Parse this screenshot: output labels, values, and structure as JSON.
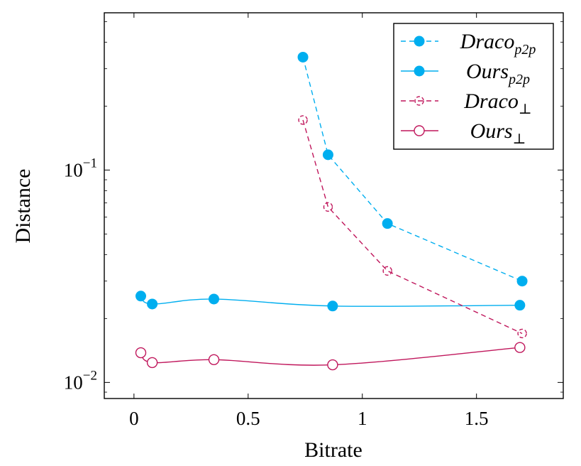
{
  "chart_data": {
    "type": "line",
    "xlabel": "Bitrate",
    "ylabel": "Distance",
    "xlim": [
      -0.13,
      1.88
    ],
    "ylim": [
      0.0084,
      0.55
    ],
    "yscale": "log",
    "xticks": [
      0,
      0.5,
      1,
      1.5
    ],
    "xtick_labels": [
      "0",
      "0.5",
      "1",
      "1.5"
    ],
    "yticks": [
      0.01,
      0.1
    ],
    "ytick_labels": [
      {
        "base": "10",
        "exp": "−2"
      },
      {
        "base": "10",
        "exp": "−1"
      }
    ],
    "grid": false,
    "legend_position": "top-right",
    "series": [
      {
        "name": "Draco",
        "sub": "p2p",
        "color": "#00AEEF",
        "dash": "dashed",
        "marker": "filled-circle",
        "curve": "linear",
        "x": [
          0.74,
          0.85,
          1.11,
          1.7
        ],
        "y": [
          0.34,
          0.118,
          0.056,
          0.03
        ]
      },
      {
        "name": "Ours",
        "sub": "p2p",
        "color": "#00AEEF",
        "dash": "solid",
        "marker": "filled-circle",
        "curve": "smooth",
        "x": [
          0.03,
          0.08,
          0.35,
          0.87,
          1.69
        ],
        "y": [
          0.0255,
          0.0234,
          0.0247,
          0.0229,
          0.0231
        ]
      },
      {
        "name": "Draco",
        "sub": "⊥",
        "color": "#C0175C",
        "dash": "dashed",
        "marker": "half-circle",
        "curve": "linear",
        "x": [
          0.74,
          0.85,
          1.11,
          1.7
        ],
        "y": [
          0.172,
          0.067,
          0.0335,
          0.017
        ]
      },
      {
        "name": "Ours",
        "sub": "⊥",
        "color": "#C0175C",
        "dash": "solid",
        "marker": "open-circle",
        "curve": "smooth",
        "x": [
          0.03,
          0.08,
          0.35,
          0.87,
          1.69
        ],
        "y": [
          0.0138,
          0.0124,
          0.0128,
          0.0121,
          0.0146
        ]
      }
    ]
  }
}
